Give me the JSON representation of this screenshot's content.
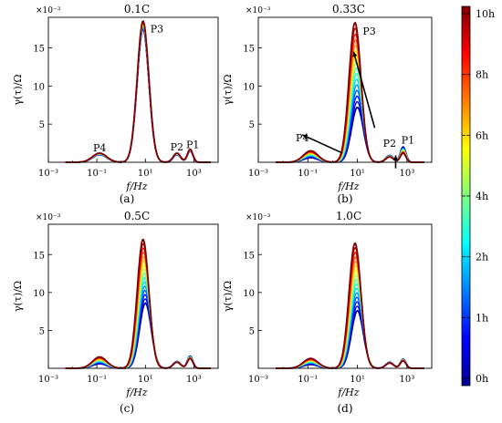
{
  "figure": {
    "ylabel": "γ(τ)/Ω",
    "xlabel": "f/Hz",
    "y_multiplier": "×10⁻³",
    "x_tick_labels": [
      "10⁻³",
      "10⁻¹",
      "10¹",
      "10³"
    ],
    "y_tick_labels": [
      "5",
      "10",
      "15"
    ]
  },
  "colorbar": {
    "ticks": [
      "10h",
      "8h",
      "6h",
      "4h",
      "2h",
      "1h",
      "0h"
    ],
    "colors": [
      "#00008f",
      "#0000ff",
      "#007fff",
      "#00ffff",
      "#7fff7f",
      "#ffff00",
      "#ff7f00",
      "#ff0000",
      "#7f0000"
    ]
  },
  "chart_data": [
    {
      "type": "line",
      "title": "0.1C",
      "sublabel": "(a)",
      "xlabel": "f/Hz",
      "ylabel": "γ(τ)/Ω",
      "x_scale": "log",
      "xlim": [
        0.001,
        10000
      ],
      "ylim": [
        0,
        19
      ],
      "y_multiplier": "10^-3",
      "annotations": [
        {
          "text": "P4",
          "x": 0.13,
          "y": 1.2
        },
        {
          "text": "P3",
          "x": 30,
          "y": 16.8
        },
        {
          "text": "P2",
          "x": 200,
          "y": 1.3
        },
        {
          "text": "P1",
          "x": 900,
          "y": 1.6
        }
      ],
      "series_summary": "curves from 0h to 10h nearly overlapping",
      "peaks_0h": [
        {
          "x": 0.13,
          "y": 1.0
        },
        {
          "x": 8,
          "y": 17.5
        },
        {
          "x": 200,
          "y": 1.0
        },
        {
          "x": 700,
          "y": 1.5
        }
      ],
      "peaks_10h": [
        {
          "x": 0.13,
          "y": 1.2
        },
        {
          "x": 8,
          "y": 18.5
        },
        {
          "x": 200,
          "y": 1.2
        },
        {
          "x": 700,
          "y": 1.7
        }
      ]
    },
    {
      "type": "line",
      "title": "0.33C",
      "sublabel": "(b)",
      "xlabel": "f/Hz",
      "ylabel": "γ(τ)/Ω",
      "x_scale": "log",
      "xlim": [
        0.001,
        10000
      ],
      "ylim": [
        0,
        19
      ],
      "y_multiplier": "10^-3",
      "annotations": [
        {
          "text": "P4",
          "x": 0.06,
          "y": 2.5
        },
        {
          "text": "P3",
          "x": 30,
          "y": 16.5
        },
        {
          "text": "P2",
          "x": 200,
          "y": 1.8
        },
        {
          "text": "P1",
          "x": 1100,
          "y": 2.2
        }
      ],
      "peaks_0h": [
        {
          "x": 0.13,
          "y": 0.6
        },
        {
          "x": 10,
          "y": 7.2
        },
        {
          "x": 200,
          "y": 0.9
        },
        {
          "x": 700,
          "y": 2.0
        }
      ],
      "peaks_10h": [
        {
          "x": 0.13,
          "y": 1.5
        },
        {
          "x": 8,
          "y": 18.3
        },
        {
          "x": 200,
          "y": 0.7
        },
        {
          "x": 700,
          "y": 1.2
        }
      ]
    },
    {
      "type": "line",
      "title": "0.5C",
      "sublabel": "(c)",
      "xlabel": "f/Hz",
      "ylabel": "γ(τ)/Ω",
      "x_scale": "log",
      "xlim": [
        0.001,
        10000
      ],
      "ylim": [
        0,
        19
      ],
      "y_multiplier": "10^-3",
      "peaks_0h": [
        {
          "x": 0.13,
          "y": 0.6
        },
        {
          "x": 10,
          "y": 8.6
        },
        {
          "x": 200,
          "y": 0.9
        },
        {
          "x": 700,
          "y": 1.6
        }
      ],
      "peaks_10h": [
        {
          "x": 0.13,
          "y": 1.5
        },
        {
          "x": 8,
          "y": 17.0
        },
        {
          "x": 200,
          "y": 0.8
        },
        {
          "x": 700,
          "y": 1.3
        }
      ]
    },
    {
      "type": "line",
      "title": "1.0C",
      "sublabel": "(d)",
      "xlabel": "f/Hz",
      "ylabel": "γ(τ)/Ω",
      "x_scale": "log",
      "xlim": [
        0.001,
        10000
      ],
      "ylim": [
        0,
        19
      ],
      "y_multiplier": "10^-3",
      "peaks_0h": [
        {
          "x": 0.13,
          "y": 0.5
        },
        {
          "x": 10,
          "y": 7.6
        },
        {
          "x": 200,
          "y": 0.8
        },
        {
          "x": 700,
          "y": 1.2
        }
      ],
      "peaks_10h": [
        {
          "x": 0.13,
          "y": 1.3
        },
        {
          "x": 8,
          "y": 16.5
        },
        {
          "x": 200,
          "y": 0.7
        },
        {
          "x": 700,
          "y": 1.0
        }
      ]
    }
  ]
}
